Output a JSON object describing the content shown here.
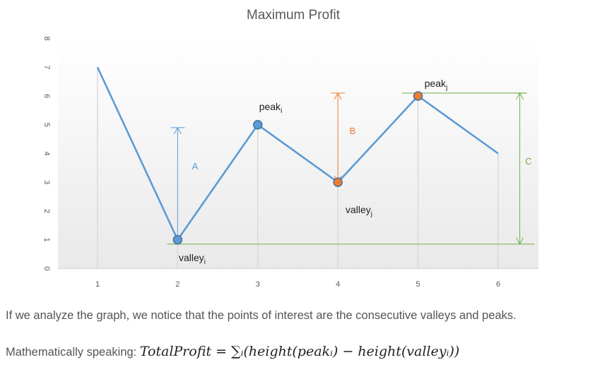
{
  "chart_data": {
    "type": "line",
    "title": "Maximum Profit",
    "x": [
      1,
      2,
      3,
      4,
      5,
      6
    ],
    "y": [
      7,
      1,
      5,
      3,
      6,
      4
    ],
    "xlim": [
      0.5,
      6.5
    ],
    "ylim": [
      0,
      8
    ],
    "xticks": [
      1,
      2,
      3,
      4,
      5,
      6
    ],
    "yticks": [
      0,
      1,
      2,
      3,
      4,
      5,
      6,
      7,
      8
    ],
    "grid": "vertical",
    "xlabel": "",
    "ylabel": "",
    "points_of_interest": [
      {
        "x": 2,
        "y": 1,
        "label": "valley",
        "sub": "i",
        "color": "#5b9bd5"
      },
      {
        "x": 3,
        "y": 5,
        "label": "peak",
        "sub": "i",
        "color": "#5b9bd5"
      },
      {
        "x": 4,
        "y": 3,
        "label": "valley",
        "sub": "j",
        "color": "#ed7d31"
      },
      {
        "x": 5,
        "y": 6,
        "label": "peak",
        "sub": "j",
        "color": "#ed7d31"
      }
    ],
    "annotations": [
      {
        "label": "A",
        "x": 2,
        "from": 1,
        "to": 4.9,
        "color": "#5b9bd5"
      },
      {
        "label": "B",
        "x": 4,
        "from": 3,
        "to": 6.1,
        "color": "#ed7d31"
      },
      {
        "label": "C",
        "x": 6.27,
        "from": 0.85,
        "to": 6.1,
        "color": "#70ad47"
      }
    ],
    "reference_lines": [
      {
        "y": 0.85,
        "x_from": 1.87,
        "x_to": 6.45,
        "color": "#70ad47"
      },
      {
        "y": 6.1,
        "x_from": 4.8,
        "x_to": 6.35,
        "color": "#70ad47"
      }
    ],
    "colors": {
      "line": "#5b9bd5",
      "grid": "#d9d9d9",
      "axis_text": "#595959",
      "label_text": "#222222"
    }
  },
  "caption": {
    "line1": "If we analyze the graph, we notice that the points of interest are the consecutive valleys and peaks.",
    "line2_prefix": "Mathematically speaking: ",
    "line2_formula": "TotalProfit = ∑ᵢ(height(peakᵢ) − height(valleyᵢ))"
  }
}
